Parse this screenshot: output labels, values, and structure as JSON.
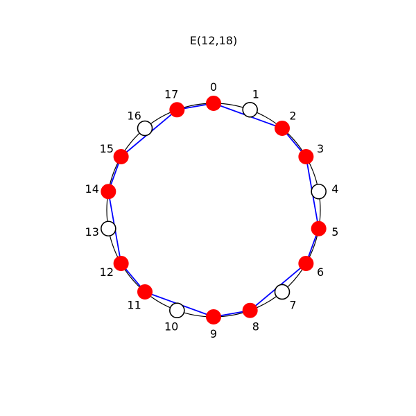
{
  "title": "E(12,18)",
  "chart_data": {
    "type": "euclidean-rhythm-circle",
    "title": "E(12,18)",
    "steps": 18,
    "pulses": 12,
    "onsets": [
      0,
      2,
      3,
      5,
      6,
      8,
      9,
      11,
      12,
      14,
      15,
      17
    ],
    "labels": [
      "0",
      "1",
      "2",
      "3",
      "4",
      "5",
      "6",
      "7",
      "8",
      "9",
      "10",
      "11",
      "12",
      "13",
      "14",
      "15",
      "16",
      "17"
    ],
    "colors": {
      "onset_fill": "#ff0000",
      "rest_fill": "#ffffff",
      "marker_edge": "#000000",
      "polygon": "#0000ff",
      "circle": "#000000"
    }
  }
}
